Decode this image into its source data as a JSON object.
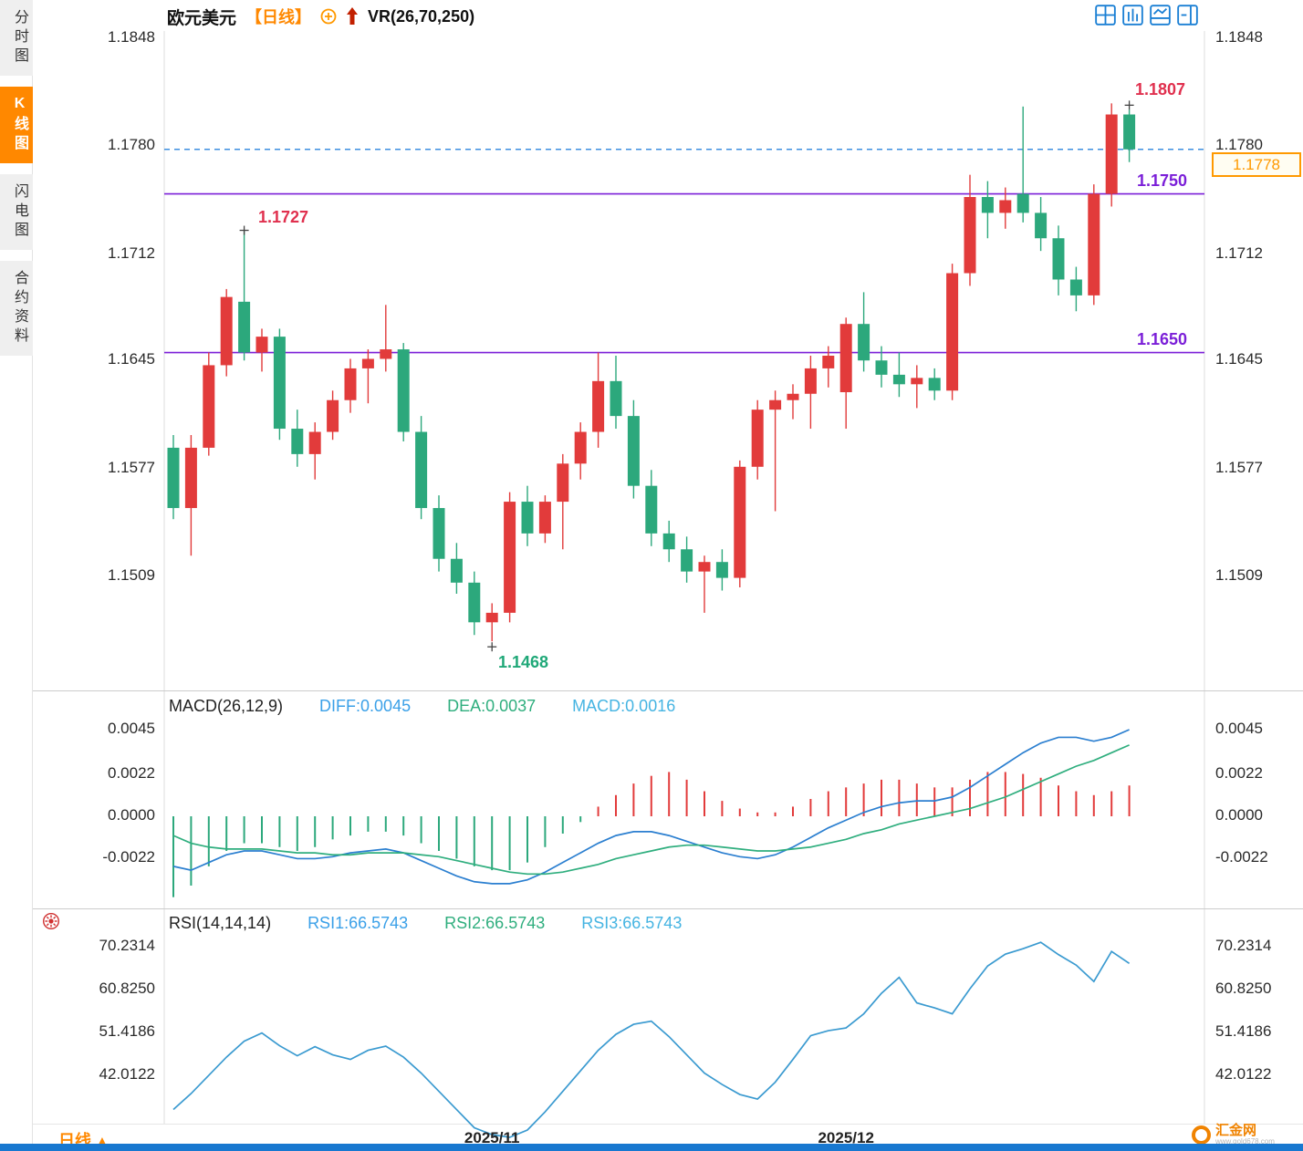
{
  "sidebar": {
    "tabs": [
      {
        "label": "分时图",
        "active": false
      },
      {
        "label": "K线图",
        "active": true
      },
      {
        "label": "闪电图",
        "active": false
      },
      {
        "label": "合约资料",
        "active": false
      }
    ]
  },
  "header": {
    "symbol": "欧元美元",
    "period_tag": "【日线】",
    "indicator_label": "VR(26,70,250)",
    "add_icon_name": "circle-plus-icon",
    "trend_icon_name": "red-up-arrow-icon",
    "toolbar_icon_names": [
      "layout-grid-icon",
      "layout-bars-icon",
      "layout-panel-icon",
      "layout-split-icon"
    ]
  },
  "colors": {
    "up": "#e23b3b",
    "down": "#2ca87c",
    "accent_orange": "#ff8800",
    "level_purple": "#7b1fd8",
    "last_price_blue": "#3d8fe0",
    "diff_blue": "#2b7fd0",
    "dea_green": "#2fae7e",
    "rsi_blue": "#3a9ad0",
    "bottom_bar_blue": "#1878d0"
  },
  "annotations": {
    "swing_high": "1.1727",
    "swing_low": "1.1468",
    "period_high": "1.1807",
    "resistance": "1.1750",
    "support": "1.1650",
    "last_price": "1.1778"
  },
  "macd_header": {
    "title": "MACD(26,12,9)",
    "diff": "DIFF:0.0045",
    "dea": "DEA:0.0037",
    "macd": "MACD:0.0016"
  },
  "rsi_header": {
    "title": "RSI(14,14,14)",
    "rsi1": "RSI1:66.5743",
    "rsi2": "RSI2:66.5743",
    "rsi3": "RSI3:66.5743"
  },
  "bottom": {
    "period_label": "日线",
    "period_arrow": "▲",
    "logo_name": "汇金网",
    "logo_domain": "www.gold678.com"
  },
  "chart_data": [
    {
      "type": "candlestick",
      "title": "欧元美元 日线 (EUR/USD Daily)",
      "grid": false,
      "y_ticks": [
        1.1848,
        1.178,
        1.1712,
        1.1645,
        1.1577,
        1.1509
      ],
      "ylim": [
        1.1437,
        1.1852
      ],
      "x_axis": {
        "labels": [
          "2025/11",
          "2025/12"
        ],
        "indices": [
          18,
          38
        ]
      },
      "levels": {
        "resistance": 1.175,
        "support": 1.165,
        "last_price": 1.1778,
        "swing_high": 1.1727,
        "swing_low": 1.1468,
        "period_high": 1.1807
      },
      "candles_ohlc": [
        [
          1.159,
          1.1598,
          1.1545,
          1.1552
        ],
        [
          1.1552,
          1.1598,
          1.1522,
          1.159
        ],
        [
          1.159,
          1.165,
          1.1585,
          1.1642
        ],
        [
          1.1642,
          1.169,
          1.1635,
          1.1685
        ],
        [
          1.1682,
          1.1727,
          1.1645,
          1.165
        ],
        [
          1.165,
          1.1665,
          1.1638,
          1.166
        ],
        [
          1.166,
          1.1665,
          1.1595,
          1.1602
        ],
        [
          1.1602,
          1.1614,
          1.1578,
          1.1586
        ],
        [
          1.1586,
          1.1606,
          1.157,
          1.16
        ],
        [
          1.16,
          1.1626,
          1.1595,
          1.162
        ],
        [
          1.162,
          1.1646,
          1.1612,
          1.164
        ],
        [
          1.164,
          1.1652,
          1.1618,
          1.1646
        ],
        [
          1.1646,
          1.168,
          1.1638,
          1.1652
        ],
        [
          1.1652,
          1.1656,
          1.1594,
          1.16
        ],
        [
          1.16,
          1.161,
          1.1545,
          1.1552
        ],
        [
          1.1552,
          1.156,
          1.1512,
          1.152
        ],
        [
          1.152,
          1.153,
          1.1498,
          1.1505
        ],
        [
          1.1505,
          1.1512,
          1.1472,
          1.148
        ],
        [
          1.148,
          1.1492,
          1.1468,
          1.1486
        ],
        [
          1.1486,
          1.1562,
          1.148,
          1.1556
        ],
        [
          1.1556,
          1.1566,
          1.1528,
          1.1536
        ],
        [
          1.1536,
          1.156,
          1.153,
          1.1556
        ],
        [
          1.1556,
          1.1586,
          1.1526,
          1.158
        ],
        [
          1.158,
          1.1606,
          1.157,
          1.16
        ],
        [
          1.16,
          1.165,
          1.159,
          1.1632
        ],
        [
          1.1632,
          1.1648,
          1.1602,
          1.161
        ],
        [
          1.161,
          1.162,
          1.1558,
          1.1566
        ],
        [
          1.1566,
          1.1576,
          1.1528,
          1.1536
        ],
        [
          1.1536,
          1.1544,
          1.1518,
          1.1526
        ],
        [
          1.1526,
          1.1534,
          1.1505,
          1.1512
        ],
        [
          1.1512,
          1.1522,
          1.1486,
          1.1518
        ],
        [
          1.1518,
          1.1526,
          1.15,
          1.1508
        ],
        [
          1.1508,
          1.1582,
          1.1502,
          1.1578
        ],
        [
          1.1578,
          1.162,
          1.157,
          1.1614
        ],
        [
          1.1614,
          1.1626,
          1.155,
          1.162
        ],
        [
          1.162,
          1.163,
          1.1608,
          1.1624
        ],
        [
          1.1624,
          1.1648,
          1.1602,
          1.164
        ],
        [
          1.164,
          1.1654,
          1.1628,
          1.1648
        ],
        [
          1.1625,
          1.1672,
          1.1602,
          1.1668
        ],
        [
          1.1668,
          1.1688,
          1.1638,
          1.1645
        ],
        [
          1.1645,
          1.1654,
          1.1628,
          1.1636
        ],
        [
          1.1636,
          1.165,
          1.1622,
          1.163
        ],
        [
          1.163,
          1.1642,
          1.1615,
          1.1634
        ],
        [
          1.1634,
          1.164,
          1.162,
          1.1626
        ],
        [
          1.1626,
          1.1706,
          1.162,
          1.17
        ],
        [
          1.17,
          1.1762,
          1.1692,
          1.1748
        ],
        [
          1.1748,
          1.1758,
          1.1722,
          1.1738
        ],
        [
          1.1738,
          1.1754,
          1.1728,
          1.1746
        ],
        [
          1.175,
          1.1805,
          1.1732,
          1.1738
        ],
        [
          1.1738,
          1.1748,
          1.1714,
          1.1722
        ],
        [
          1.1722,
          1.173,
          1.1686,
          1.1696
        ],
        [
          1.1696,
          1.1704,
          1.1676,
          1.1686
        ],
        [
          1.1686,
          1.1756,
          1.168,
          1.175
        ],
        [
          1.175,
          1.1807,
          1.1742,
          1.18
        ],
        [
          1.18,
          1.1803,
          1.177,
          1.1778
        ]
      ]
    },
    {
      "type": "bar",
      "title": "MACD(26,12,9)",
      "grid": false,
      "y_ticks": [
        0.0045,
        0.0022,
        0.0,
        -0.0022
      ],
      "series": [
        {
          "name": "DIFF",
          "values": [
            -0.0026,
            -0.0028,
            -0.0024,
            -0.002,
            -0.0018,
            -0.0018,
            -0.002,
            -0.0022,
            -0.0022,
            -0.0021,
            -0.0019,
            -0.0018,
            -0.0017,
            -0.0019,
            -0.0023,
            -0.0027,
            -0.0031,
            -0.0034,
            -0.0035,
            -0.0035,
            -0.0033,
            -0.0029,
            -0.0024,
            -0.0019,
            -0.0014,
            -0.001,
            -0.0008,
            -0.0008,
            -0.001,
            -0.0013,
            -0.0016,
            -0.0019,
            -0.0021,
            -0.0022,
            -0.002,
            -0.0016,
            -0.0011,
            -0.0006,
            -0.0002,
            0.0002,
            0.0005,
            0.0007,
            0.0008,
            0.0008,
            0.001,
            0.0015,
            0.0021,
            0.0027,
            0.0033,
            0.0038,
            0.0041,
            0.0041,
            0.0039,
            0.0041,
            0.0045
          ]
        },
        {
          "name": "DEA",
          "values": [
            -0.001,
            -0.0014,
            -0.0016,
            -0.0017,
            -0.0017,
            -0.0017,
            -0.0018,
            -0.0019,
            -0.0019,
            -0.002,
            -0.002,
            -0.0019,
            -0.0019,
            -0.0019,
            -0.002,
            -0.0021,
            -0.0023,
            -0.0025,
            -0.0027,
            -0.0029,
            -0.003,
            -0.003,
            -0.0029,
            -0.0027,
            -0.0025,
            -0.0022,
            -0.002,
            -0.0018,
            -0.0016,
            -0.0015,
            -0.0015,
            -0.0016,
            -0.0017,
            -0.0018,
            -0.0018,
            -0.0017,
            -0.0016,
            -0.0014,
            -0.0012,
            -0.0009,
            -0.0007,
            -0.0004,
            -0.0002,
            0.0,
            0.0002,
            0.0004,
            0.0007,
            0.001,
            0.0014,
            0.0018,
            0.0022,
            0.0026,
            0.0029,
            0.0033,
            0.0037
          ]
        },
        {
          "name": "MACD_hist",
          "values": [
            -0.0042,
            -0.0036,
            -0.0026,
            -0.0018,
            -0.0014,
            -0.0014,
            -0.0016,
            -0.0018,
            -0.0016,
            -0.0012,
            -0.001,
            -0.0008,
            -0.0008,
            -0.001,
            -0.0014,
            -0.0018,
            -0.0022,
            -0.0026,
            -0.0028,
            -0.0028,
            -0.0024,
            -0.0016,
            -0.0009,
            -0.0003,
            0.0005,
            0.0011,
            0.0017,
            0.0021,
            0.0023,
            0.0019,
            0.0013,
            0.0008,
            0.0004,
            0.0002,
            0.0002,
            0.0005,
            0.0009,
            0.0013,
            0.0015,
            0.0017,
            0.0019,
            0.0019,
            0.0017,
            0.0015,
            0.0015,
            0.0019,
            0.0023,
            0.0023,
            0.0022,
            0.002,
            0.0016,
            0.0013,
            0.0011,
            0.0013,
            0.0016
          ]
        }
      ]
    },
    {
      "type": "line",
      "title": "RSI(14,14,14)",
      "grid": false,
      "y_ticks": [
        70.2314,
        60.825,
        51.4186,
        42.0122
      ],
      "series": [
        {
          "name": "RSI",
          "values": [
            34.5,
            38.0,
            42.0,
            46.0,
            49.5,
            51.3,
            48.5,
            46.3,
            48.3,
            46.5,
            45.5,
            47.5,
            48.4,
            46.0,
            42.5,
            38.5,
            34.5,
            30.5,
            29.0,
            28.4,
            30.0,
            34.0,
            38.5,
            43.0,
            47.5,
            51.0,
            53.2,
            53.9,
            50.5,
            46.5,
            42.5,
            40.0,
            37.8,
            36.8,
            40.5,
            45.5,
            50.7,
            51.8,
            52.4,
            55.5,
            60.0,
            63.5,
            57.9,
            56.8,
            55.5,
            61.0,
            66.0,
            68.6,
            69.8,
            71.2,
            68.5,
            66.2,
            62.6,
            69.2,
            66.5743
          ]
        }
      ]
    }
  ]
}
